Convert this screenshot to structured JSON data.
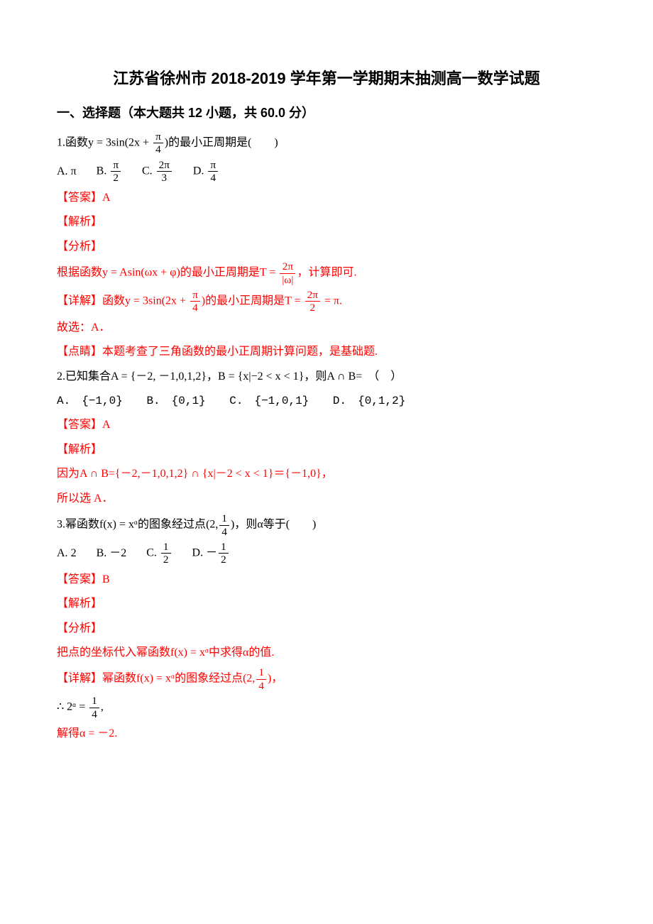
{
  "colors": {
    "text": "#000000",
    "accent": "#ff0000",
    "background": "#ffffff"
  },
  "fonts": {
    "body_family": "SimSun",
    "heading_family": "SimHei",
    "body_size_pt": 12,
    "title_size_pt": 16,
    "section_size_pt": 14
  },
  "title": "江苏省徐州市 2018-2019 学年第一学期期末抽测高一数学试题",
  "section1_header": "一、选择题（本大题共 12 小题，共 60.0 分）",
  "q1": {
    "num": "1.",
    "stem_pre": "函数",
    "func_lhs": "y = 3sin(2x + ",
    "frac_num": "π",
    "frac_den": "4",
    "stem_post": ")的最小正周期是(　　)",
    "opts": {
      "A_label": "A. ",
      "A_val": "π",
      "B_label": "B. ",
      "B_num": "π",
      "B_den": "2",
      "C_label": "C. ",
      "C_num": "2π",
      "C_den": "3",
      "D_label": "D. ",
      "D_num": "π",
      "D_den": "4"
    },
    "answer_label": "【答案】",
    "answer": "A",
    "jiexi": "【解析】",
    "fenxi": "【分析】",
    "fenxi_text_pre": "根据函数",
    "fenxi_func": "y = Asin(ωx + φ)",
    "fenxi_text_mid": "的最小正周期是",
    "T_eq": "T = ",
    "T_num": "2π",
    "T_den": "|ω|",
    "fenxi_text_post": "，计算即可.",
    "detail_label": "【详解】",
    "detail_pre": "函数",
    "detail_func_pre": "y = 3sin(2x + ",
    "detail_frac_num": "π",
    "detail_frac_den": "4",
    "detail_mid": ")的最小正周期是",
    "detail_T": "T = ",
    "detail_T_num": "2π",
    "detail_T_den": "2",
    "detail_eq": " = π.",
    "guxuan": "故选：A．",
    "dianjing_label": "【点睛】",
    "dianjing": "本题考查了三角函数的最小正周期计算问题，是基础题."
  },
  "q2": {
    "num": "2.",
    "stem": "已知集合A = {－2, －1,0,1,2}，B = {x|−2 < x < 1}，则A ∩ B=　（　）",
    "opts": {
      "A": "A.　{−1,0}",
      "B": "B.　{0,1}",
      "C": "C.　{−1,0,1}",
      "D": "D.　{0,1,2}"
    },
    "answer_label": "【答案】",
    "answer": "A",
    "jiexi": "【解析】",
    "line1": "因为A ∩ B={－2,－1,0,1,2} ∩ {x|－2 < x < 1}＝{－1,0}，",
    "line2": "所以选 A．"
  },
  "q3": {
    "num": "3.",
    "stem_pre": "幂函数",
    "func": "f(x) = xᵅ",
    "stem_mid": "的图象经过点",
    "point_pre": "(2,",
    "point_num": "1",
    "point_den": "4",
    "stem_post": ")，则α等于(　　)",
    "opts": {
      "A_label": "A. ",
      "A_val": "2",
      "B_label": "B. ",
      "B_val": "－2",
      "C_label": "C. ",
      "C_num": "1",
      "C_den": "2",
      "D_label": "D. ",
      "D_pre": "－",
      "D_num": "1",
      "D_den": "2"
    },
    "answer_label": "【答案】",
    "answer": "B",
    "jiexi": "【解析】",
    "fenxi": "【分析】",
    "fenxi_text_pre": "把点的坐标代入幂函数",
    "fenxi_func": "f(x) = xᵅ",
    "fenxi_text_post": "中求得α的值.",
    "detail_label": "【详解】",
    "detail_pre": "幂函数",
    "detail_func": "f(x) = xᵅ",
    "detail_mid": "的图象经过点",
    "detail_point_pre": "(2,",
    "detail_point_num": "1",
    "detail_point_den": "4",
    "detail_post": ")，",
    "therefore_pre": "∴ 2ᵅ = ",
    "therefore_num": "1",
    "therefore_den": "4",
    "therefore_post": ",",
    "solve": "解得α = －2."
  }
}
